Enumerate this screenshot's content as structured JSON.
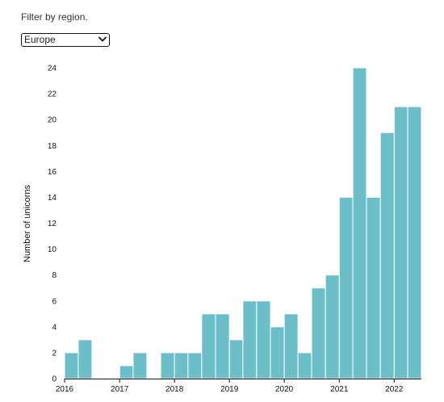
{
  "filter": {
    "label": "Filter by region.",
    "selected": "Europe"
  },
  "colors": {
    "bar": "#6cbec8",
    "axis": "#111111"
  },
  "chart_data": {
    "type": "bar",
    "title": "",
    "xlabel": "",
    "ylabel": "Number of unicorns",
    "ylim": [
      0,
      24
    ],
    "yticks": [
      0,
      2,
      4,
      6,
      8,
      10,
      12,
      14,
      16,
      18,
      20,
      22,
      24
    ],
    "xlim": [
      "2016-01-01",
      "2022-07-01"
    ],
    "xticks": [
      {
        "date": "2016-01-01",
        "label": "2016"
      },
      {
        "date": "2017-01-01",
        "label": "2017"
      },
      {
        "date": "2018-01-01",
        "label": "2018"
      },
      {
        "date": "2019-01-01",
        "label": "2019"
      },
      {
        "date": "2020-01-01",
        "label": "2020"
      },
      {
        "date": "2021-01-01",
        "label": "2021"
      },
      {
        "date": "2022-01-01",
        "label": "2022"
      }
    ],
    "bin": "quarter",
    "grid": false,
    "bars": [
      {
        "start": "2016-01-01",
        "end": "2016-04-01",
        "value": 2
      },
      {
        "start": "2016-04-01",
        "end": "2016-07-01",
        "value": 3
      },
      {
        "start": "2016-07-01",
        "end": "2016-10-01",
        "value": 0
      },
      {
        "start": "2016-10-01",
        "end": "2017-01-01",
        "value": 0
      },
      {
        "start": "2017-01-01",
        "end": "2017-04-01",
        "value": 1
      },
      {
        "start": "2017-04-01",
        "end": "2017-07-01",
        "value": 2
      },
      {
        "start": "2017-07-01",
        "end": "2017-10-01",
        "value": 0
      },
      {
        "start": "2017-10-01",
        "end": "2018-01-01",
        "value": 2
      },
      {
        "start": "2018-01-01",
        "end": "2018-04-01",
        "value": 2
      },
      {
        "start": "2018-04-01",
        "end": "2018-07-01",
        "value": 2
      },
      {
        "start": "2018-07-01",
        "end": "2018-10-01",
        "value": 5
      },
      {
        "start": "2018-10-01",
        "end": "2019-01-01",
        "value": 5
      },
      {
        "start": "2019-01-01",
        "end": "2019-04-01",
        "value": 3
      },
      {
        "start": "2019-04-01",
        "end": "2019-07-01",
        "value": 6
      },
      {
        "start": "2019-07-01",
        "end": "2019-10-01",
        "value": 6
      },
      {
        "start": "2019-10-01",
        "end": "2020-01-01",
        "value": 4
      },
      {
        "start": "2020-01-01",
        "end": "2020-04-01",
        "value": 5
      },
      {
        "start": "2020-04-01",
        "end": "2020-07-01",
        "value": 2
      },
      {
        "start": "2020-07-01",
        "end": "2020-10-01",
        "value": 7
      },
      {
        "start": "2020-10-01",
        "end": "2021-01-01",
        "value": 8
      },
      {
        "start": "2021-01-01",
        "end": "2021-04-01",
        "value": 14
      },
      {
        "start": "2021-04-01",
        "end": "2021-07-01",
        "value": 24
      },
      {
        "start": "2021-07-01",
        "end": "2021-10-01",
        "value": 14
      },
      {
        "start": "2021-10-01",
        "end": "2022-01-01",
        "value": 19
      },
      {
        "start": "2022-01-01",
        "end": "2022-04-01",
        "value": 21
      },
      {
        "start": "2022-04-01",
        "end": "2022-07-01",
        "value": 21
      }
    ]
  }
}
